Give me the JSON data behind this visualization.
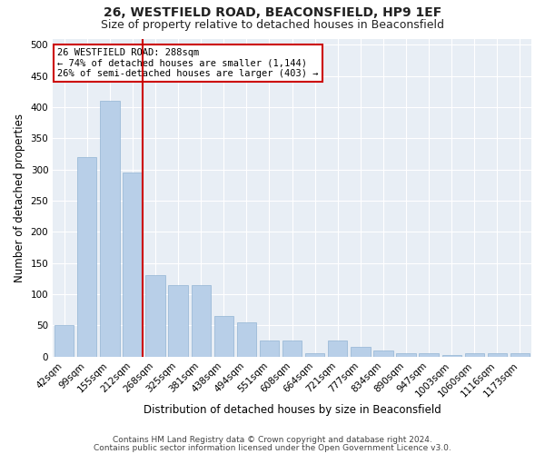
{
  "title_line1": "26, WESTFIELD ROAD, BEACONSFIELD, HP9 1EF",
  "title_line2": "Size of property relative to detached houses in Beaconsfield",
  "xlabel": "Distribution of detached houses by size in Beaconsfield",
  "ylabel": "Number of detached properties",
  "categories": [
    "42sqm",
    "99sqm",
    "155sqm",
    "212sqm",
    "268sqm",
    "325sqm",
    "381sqm",
    "438sqm",
    "494sqm",
    "551sqm",
    "608sqm",
    "664sqm",
    "721sqm",
    "777sqm",
    "834sqm",
    "890sqm",
    "947sqm",
    "1003sqm",
    "1060sqm",
    "1116sqm",
    "1173sqm"
  ],
  "values": [
    50,
    320,
    410,
    295,
    130,
    115,
    115,
    65,
    55,
    25,
    25,
    5,
    25,
    15,
    10,
    5,
    5,
    2,
    5,
    5,
    5
  ],
  "bar_color": "#b8cfe8",
  "bar_edge_color": "#92b4d4",
  "annotation_text": "26 WESTFIELD ROAD: 288sqm\n← 74% of detached houses are smaller (1,144)\n26% of semi-detached houses are larger (403) →",
  "annotation_box_facecolor": "#ffffff",
  "annotation_box_edgecolor": "#cc0000",
  "ylim": [
    0,
    510
  ],
  "yticks": [
    0,
    50,
    100,
    150,
    200,
    250,
    300,
    350,
    400,
    450,
    500
  ],
  "background_color": "#e8eef5",
  "footer_line1": "Contains HM Land Registry data © Crown copyright and database right 2024.",
  "footer_line2": "Contains public sector information licensed under the Open Government Licence v3.0.",
  "title_fontsize": 10,
  "subtitle_fontsize": 9,
  "tick_fontsize": 7.5,
  "axis_label_fontsize": 8.5,
  "annotation_fontsize": 7.5,
  "footer_fontsize": 6.5,
  "red_line_color": "#cc0000",
  "red_line_x": 3.42,
  "grid_color": "#ffffff",
  "grid_lw": 0.8
}
